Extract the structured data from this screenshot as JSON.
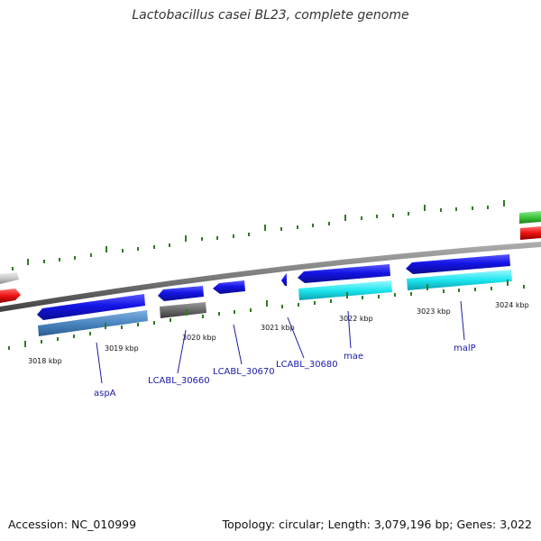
{
  "title": "Lactobacillus casei BL23, complete genome",
  "footer": {
    "accession": "Accession: NC_010999",
    "stats": "Topology: circular; Length: 3,079,196 bp; Genes: 3,022"
  },
  "scale": {
    "ticks": [
      "3018 kbp",
      "3019 kbp",
      "3020 kbp",
      "3021 kbp",
      "3022 kbp",
      "3023 kbp",
      "3024 kbp"
    ]
  },
  "genes": {
    "aspA": "aspA",
    "lcabl_30660": "LCABL_30660",
    "lcabl_30670": "LCABL_30670",
    "lcabl_30680": "LCABL_30680",
    "mae": "mae",
    "malP": "malP"
  },
  "colors": {
    "forward_gene": "#1414e6",
    "cds_aspA": "#4a86c0",
    "cds_30660": "#6a6a6a",
    "cds_mae_malP": "#1ee6ee",
    "outer_green": "#3cc83c",
    "outer_red": "#ee1111",
    "backbone": "#7a7a7a",
    "tick_green": "#2e7d1e",
    "label_blue": "#1a1aa8"
  }
}
